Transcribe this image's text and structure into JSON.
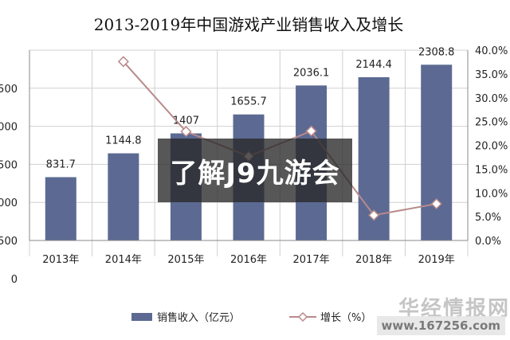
{
  "chart_data": {
    "type": "bar",
    "title": "2013-2019年中国游戏产业销售收入及增长",
    "categories": [
      "2013年",
      "2014年",
      "2015年",
      "2016年",
      "2017年",
      "2018年",
      "2019年"
    ],
    "y_left_ticks": [
      "",
      "500",
      "000",
      "500",
      "000",
      "500",
      "0"
    ],
    "y_right_ticks": [
      "40.0%",
      "35.0%",
      "30.0%",
      "25.0%",
      "20.0%",
      "15.0%",
      "10.0%",
      "5.0%",
      "0.0%"
    ],
    "ylim_left": [
      0,
      2500
    ],
    "ylim_right": [
      0,
      40
    ],
    "series": [
      {
        "name": "销售收入（亿元）",
        "type": "bar",
        "axis": "left",
        "values": [
          831.7,
          1144.8,
          1407,
          1655.7,
          2036.1,
          2144.4,
          2308.8
        ],
        "labels": [
          "831.7",
          "1144.8",
          "1407",
          "1655.7",
          "2036.1",
          "2144.4",
          "2308.8"
        ],
        "color": "#5c6a93"
      },
      {
        "name": "增长（%）",
        "type": "line",
        "axis": "right",
        "values": [
          null,
          37.6,
          22.9,
          17.7,
          23.0,
          5.3,
          7.7
        ],
        "color": "#b98a8a"
      }
    ],
    "legend_position": "bottom",
    "grid": true
  },
  "overlay": {
    "text": "了解J9九游会"
  },
  "watermark": {
    "cn": "华经情报网",
    "url": "www.167256.com"
  }
}
